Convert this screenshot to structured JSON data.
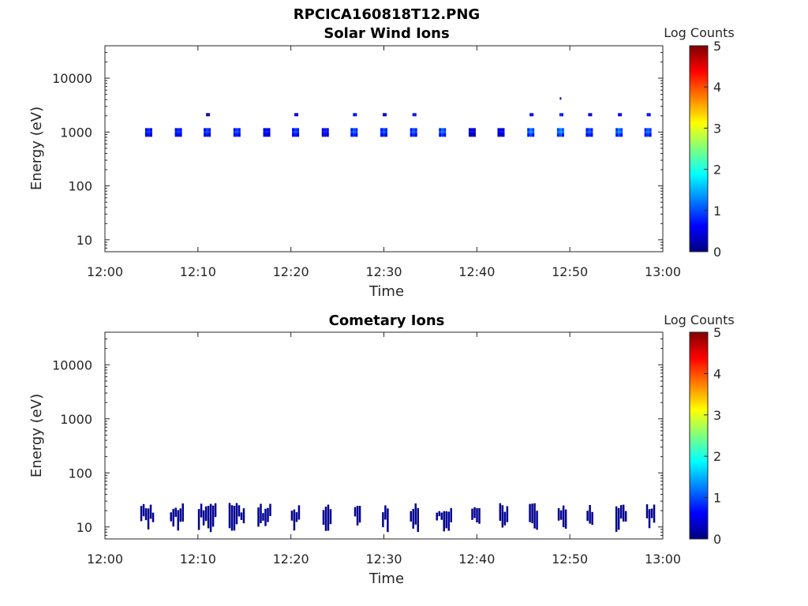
{
  "figure": {
    "title": "RPCICA160818T12.PNG"
  },
  "colorbar": {
    "label": "Log Counts",
    "ticks": [
      "0",
      "1",
      "2",
      "3",
      "4",
      "5"
    ],
    "colors": [
      "#00007f",
      "#0000ff",
      "#007fff",
      "#00ffff",
      "#7fff7f",
      "#ffff00",
      "#ff7f00",
      "#ff0000",
      "#7f0000"
    ]
  },
  "chart_data": [
    {
      "type": "heatmap",
      "title": "Solar Wind Ions",
      "xlabel": "Time",
      "ylabel": "Energy (eV)",
      "xlim": [
        "12:00",
        "13:00"
      ],
      "ylim": [
        6,
        40000
      ],
      "yscale": "log",
      "xticks": [
        "12:00",
        "12:10",
        "12:20",
        "12:30",
        "12:40",
        "12:50",
        "13:00"
      ],
      "yticks": [
        "10",
        "100",
        "1000",
        "10000"
      ],
      "zlim": [
        0,
        5
      ],
      "zlabel": "Log Counts",
      "time_min": [
        4.7,
        7.9,
        11.0,
        14.2,
        17.4,
        20.5,
        23.7,
        26.8,
        30.0,
        33.2,
        36.3,
        39.5,
        42.6,
        45.8,
        49.0,
        52.1,
        55.3,
        58.4
      ],
      "main_band_energy_eV": 1000,
      "main_band_log_counts": [
        0.8,
        0.8,
        0.9,
        0.9,
        0.7,
        0.9,
        0.7,
        1.0,
        1.0,
        1.0,
        1.1,
        0.5,
        0.6,
        1.2,
        1.3,
        1.0,
        1.2,
        1.1
      ],
      "upper_band_energy_eV": 2100,
      "upper_band_time_min": [
        11.0,
        20.5,
        26.8,
        30.0,
        33.2,
        45.8,
        49.0,
        52.1,
        55.3,
        58.4
      ],
      "upper_band_log_counts": [
        0.3,
        0.5,
        0.7,
        0.5,
        0.7,
        0.6,
        0.8,
        0.5,
        0.6,
        0.7
      ],
      "isolated_points": [
        {
          "time_min": 49.0,
          "energy_eV": 4200,
          "log_counts": 0.2
        }
      ]
    },
    {
      "type": "heatmap",
      "title": "Cometary Ions",
      "xlabel": "Time",
      "ylabel": "Energy (eV)",
      "xlim": [
        "12:00",
        "13:00"
      ],
      "ylim": [
        6,
        40000
      ],
      "yscale": "log",
      "xticks": [
        "12:00",
        "12:10",
        "12:20",
        "12:30",
        "12:40",
        "12:50",
        "13:00"
      ],
      "yticks": [
        "10",
        "100",
        "1000",
        "10000"
      ],
      "zlim": [
        0,
        5
      ],
      "zlabel": "Log Counts",
      "energy_range_eV": [
        8,
        28
      ],
      "typical_log_counts": 0.1,
      "activity_intervals_min": [
        [
          3.8,
          5.2
        ],
        [
          7.0,
          8.5
        ],
        [
          10.0,
          11.8
        ],
        [
          13.3,
          15.0
        ],
        [
          16.4,
          17.8
        ],
        [
          20.0,
          21.0
        ],
        [
          23.4,
          24.2
        ],
        [
          26.8,
          27.5
        ],
        [
          29.8,
          30.5
        ],
        [
          32.8,
          33.8
        ],
        [
          35.6,
          37.3
        ],
        [
          39.4,
          40.2
        ],
        [
          42.4,
          43.2
        ],
        [
          45.6,
          46.6
        ],
        [
          48.7,
          49.5
        ],
        [
          51.8,
          52.5
        ],
        [
          54.9,
          56.0
        ],
        [
          58.2,
          59.2
        ]
      ]
    }
  ]
}
